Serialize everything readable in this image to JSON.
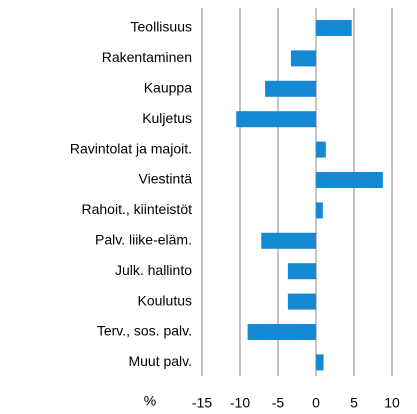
{
  "chart_data": {
    "type": "barh",
    "categories": [
      "Teollisuus",
      "Rakentaminen",
      "Kauppa",
      "Kuljetus",
      "Ravintolat ja majoit.",
      "Viestintä",
      "Rahoit., kiinteistöt",
      "Palv. liike-eläm.",
      "Julk. hallinto",
      "Koulutus",
      "Terv., sos. palv.",
      "Muut palv."
    ],
    "values": [
      4.7,
      -3.3,
      -6.7,
      -10.5,
      1.3,
      8.8,
      0.9,
      -7.2,
      -3.7,
      -3.7,
      -9.0,
      1.0
    ],
    "color": "#1589d3",
    "xlabel": "%",
    "xlim": [
      -15,
      10
    ],
    "xticks": [
      -15,
      -10,
      -5,
      0,
      5,
      10
    ],
    "grid": true
  }
}
